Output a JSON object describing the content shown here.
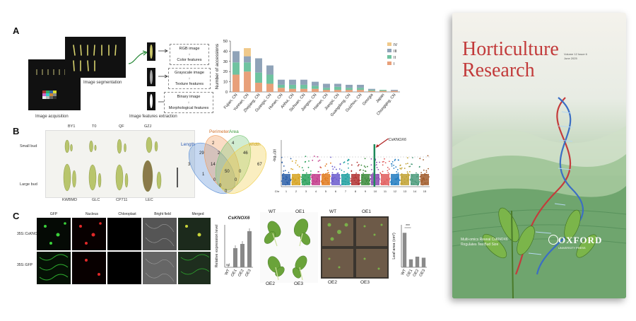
{
  "panelA": {
    "label": "A",
    "img_acq": "Image acquisition",
    "img_seg": "Image segmentation",
    "img_feat": "Image features extraction",
    "flow": [
      {
        "t": "RGB image",
        "f": "Color features"
      },
      {
        "t": "Grayscale image",
        "f": "Texture features"
      },
      {
        "t": "Binary image",
        "f": "Morphological features"
      }
    ]
  },
  "chart_data": {
    "type": "bar",
    "title": "",
    "ylabel": "Number of accessions",
    "xlabel": "",
    "ylim": [
      0,
      50
    ],
    "yticks": [
      0,
      10,
      20,
      30,
      40,
      50
    ],
    "categories": [
      "Fujian, CN",
      "Yunnan, CN",
      "Zhejiang, CN",
      "Guangxi, CN",
      "Hunan, CN",
      "Anhui, CN",
      "Sichuan, CN",
      "Jiangsu, CN",
      "Hainan, CN",
      "Jiangxi, CN",
      "Guangdong, CN",
      "Guizhou, CN",
      "Georgia",
      "Japan",
      "Chongqing, CN"
    ],
    "series": [
      {
        "name": "I",
        "color": "#e8a07a",
        "values": [
          17,
          20,
          9,
          8,
          4,
          3,
          3,
          3,
          2,
          2,
          2,
          2,
          1,
          1,
          1
        ]
      },
      {
        "name": "II",
        "color": "#6fc3a0",
        "values": [
          12,
          9,
          10,
          9,
          3,
          4,
          4,
          3,
          2,
          3,
          2,
          2,
          1,
          1,
          0
        ]
      },
      {
        "name": "III",
        "color": "#8fa3b8",
        "values": [
          11,
          6,
          14,
          9,
          5,
          5,
          5,
          4,
          4,
          3,
          3,
          3,
          1,
          0,
          1
        ]
      },
      {
        "name": "IV",
        "color": "#f0c98a",
        "values": [
          0,
          8,
          0,
          0,
          0,
          0,
          0,
          0,
          0,
          0,
          0,
          0,
          0,
          0,
          0
        ]
      }
    ],
    "legend": [
      "IV",
      "III",
      "II",
      "I"
    ]
  },
  "panelB": {
    "label": "B",
    "cultivars_top": [
      "BY1",
      "T0",
      "QF",
      "GZJ"
    ],
    "cultivars_bottom": [
      "KWBMD",
      "GLC",
      "CP711",
      "LEC"
    ],
    "small_bud": "Small bud",
    "large_bud": "Large bud",
    "venn": {
      "sets": [
        "Length",
        "Perimeter",
        "Area",
        "Width"
      ],
      "numbers": [
        "3",
        "2",
        "4",
        "67",
        "29",
        "2",
        "46",
        "14",
        "1",
        "50",
        "0",
        "0",
        "0",
        "0",
        "0"
      ]
    },
    "manhattan": {
      "ylabel": "-log₁₀(p)",
      "gene": "CsKNOX6",
      "chroms": [
        "Chr",
        "1",
        "2",
        "3",
        "4",
        "5",
        "6",
        "7",
        "8",
        "9",
        "10",
        "11",
        "12",
        "13",
        "14",
        "15"
      ]
    }
  },
  "panelC": {
    "label": "C",
    "cols": [
      "GFP",
      "Nucleus",
      "Chloroplast",
      "Bright field",
      "Merged"
    ],
    "rows": [
      "35S::CsKNOX6",
      "35S::GFP"
    ],
    "bar1": {
      "title": "CsKNOX6",
      "ylabel": "Relative expression level",
      "categories": [
        "WT",
        "OE1",
        "OE2",
        "OE3"
      ],
      "values": [
        0.1,
        18,
        22,
        34
      ],
      "nd": "nd"
    },
    "plants_top": [
      "WT",
      "OE1"
    ],
    "plants_bottom": [
      "OE2",
      "OE3"
    ],
    "pots_top": [
      "WT",
      "OE1"
    ],
    "pots_bottom": [
      "OE2",
      "OE3"
    ],
    "bar2": {
      "ylabel": "Leaf area (cm²)",
      "categories": [
        "WT",
        "OE1",
        "OE2",
        "OE3"
      ],
      "values": [
        6.5,
        1.5,
        2.0,
        1.8
      ],
      "sig": "***"
    }
  },
  "cover": {
    "title_line1": "Horticulture",
    "title_line2": "Research",
    "volume": "Volume 12 Issue 6",
    "date": "June 2025",
    "publisher": "OXFORD",
    "publisher_sub": "UNIVERSITY PRESS",
    "cover_line": "Multi-omics Reveal CsKNOX6 Regulates Tea Bud Size"
  }
}
